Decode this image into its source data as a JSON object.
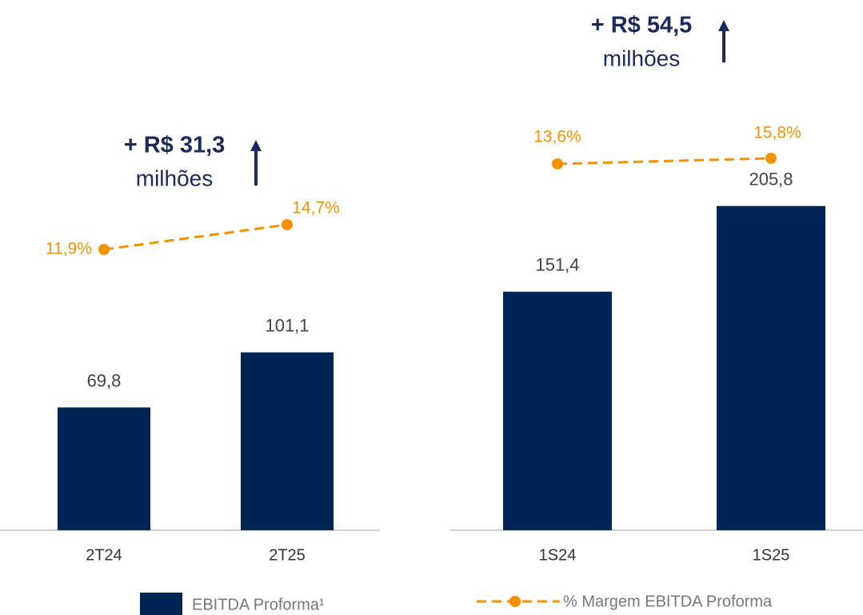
{
  "chart_data": [
    {
      "type": "combo",
      "categories": [
        "2T24",
        "2T25"
      ],
      "series": [
        {
          "name": "EBITDA Proforma¹",
          "type": "bar",
          "color": "#002453",
          "values": [
            69.8,
            101.1
          ],
          "value_labels": [
            "69,8",
            "101,1"
          ]
        },
        {
          "name": "% Margem EBITDA Proforma",
          "type": "line",
          "color": "#f39200",
          "values": [
            11.9,
            14.7
          ],
          "value_labels": [
            "11,9%",
            "14,7%"
          ]
        }
      ],
      "annotation": {
        "text": "+ R$ 31,3",
        "unit": "milhões"
      }
    },
    {
      "type": "combo",
      "categories": [
        "1S24",
        "1S25"
      ],
      "series": [
        {
          "type": "bar",
          "color": "#002453",
          "values": [
            151.4,
            205.8
          ],
          "value_labels": [
            "151,4",
            "205,8"
          ]
        },
        {
          "type": "line",
          "color": "#f39200",
          "values": [
            13.6,
            15.8
          ],
          "value_labels": [
            "13,6%",
            "15,8%"
          ]
        }
      ],
      "annotation": {
        "text": "+ R$ 54,5",
        "unit": "milhões"
      }
    }
  ]
}
